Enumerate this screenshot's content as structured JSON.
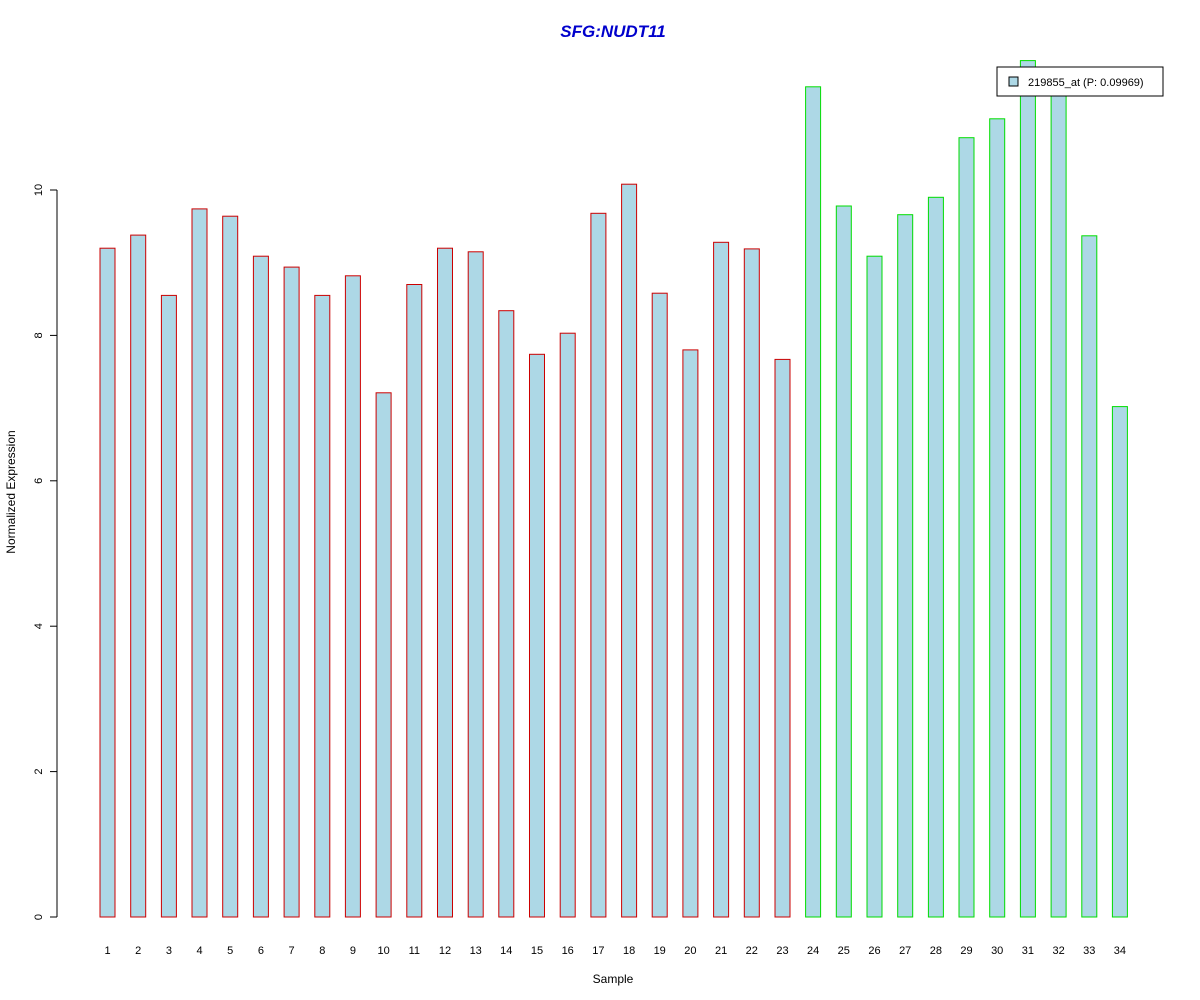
{
  "chart_data": {
    "type": "bar",
    "title": "SFG:NUDT11",
    "xlabel": "Sample",
    "ylabel": "Normalized Expression",
    "ylim": [
      0,
      11.8
    ],
    "yticks": [
      0,
      2,
      4,
      6,
      8,
      10
    ],
    "categories": [
      "1",
      "2",
      "3",
      "4",
      "5",
      "6",
      "7",
      "8",
      "9",
      "10",
      "11",
      "12",
      "13",
      "14",
      "15",
      "16",
      "17",
      "18",
      "19",
      "20",
      "21",
      "22",
      "23",
      "24",
      "25",
      "26",
      "27",
      "28",
      "29",
      "30",
      "31",
      "32",
      "33",
      "34"
    ],
    "series": [
      {
        "name": "219855_at (P: 0.09969)",
        "values": [
          9.2,
          9.38,
          8.55,
          9.74,
          9.64,
          9.09,
          8.94,
          8.55,
          8.82,
          7.21,
          8.7,
          9.2,
          9.15,
          8.34,
          7.74,
          8.03,
          9.68,
          10.08,
          8.58,
          7.8,
          9.28,
          9.19,
          7.67,
          11.42,
          9.78,
          9.09,
          9.66,
          9.9,
          10.72,
          10.98,
          11.78,
          11.48,
          9.37,
          7.02
        ]
      }
    ],
    "group_colors": [
      "#cc0000",
      "#cc0000",
      "#cc0000",
      "#cc0000",
      "#cc0000",
      "#cc0000",
      "#cc0000",
      "#cc0000",
      "#cc0000",
      "#cc0000",
      "#cc0000",
      "#cc0000",
      "#cc0000",
      "#cc0000",
      "#cc0000",
      "#cc0000",
      "#cc0000",
      "#cc0000",
      "#cc0000",
      "#cc0000",
      "#cc0000",
      "#cc0000",
      "#cc0000",
      "#00dd00",
      "#00dd00",
      "#00dd00",
      "#00dd00",
      "#00dd00",
      "#00dd00",
      "#00dd00",
      "#00dd00",
      "#00dd00",
      "#00dd00",
      "#00dd00"
    ],
    "bar_fill": "#add8e6",
    "legend": {
      "position": "top-right",
      "label": "219855_at (P: 0.09969)"
    },
    "grid": false
  }
}
